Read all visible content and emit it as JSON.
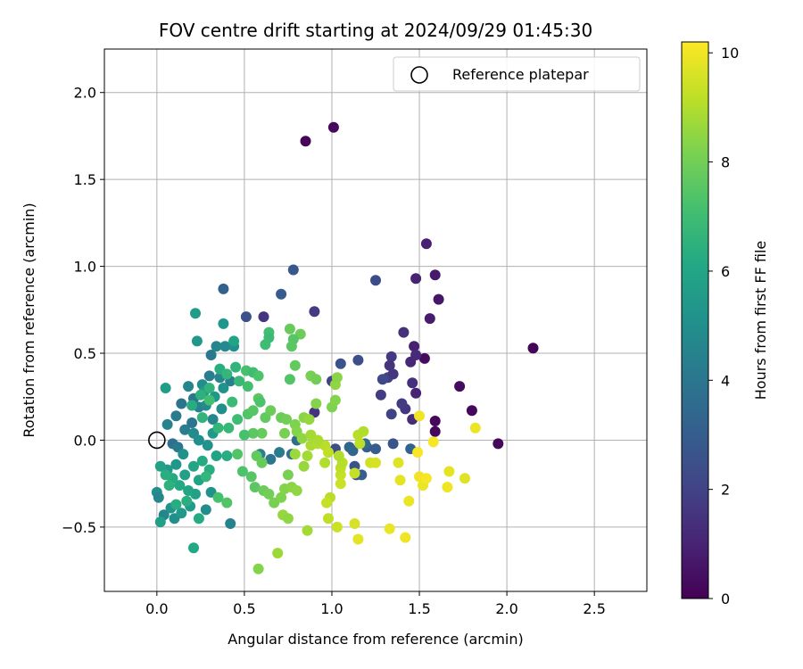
{
  "chart_data": {
    "type": "scatter",
    "title": "FOV centre drift starting at 2024/09/29 01:45:30",
    "xlabel": "Angular distance from reference (arcmin)",
    "ylabel": "Rotation from reference (arcmin)",
    "xlim": [
      -0.3,
      2.8
    ],
    "ylim": [
      -0.87,
      2.25
    ],
    "xticks": [
      0.0,
      0.5,
      1.0,
      1.5,
      2.0,
      2.5
    ],
    "xtick_labels": [
      "0.0",
      "0.5",
      "1.0",
      "1.5",
      "2.0",
      "2.5"
    ],
    "yticks": [
      -0.5,
      0.0,
      0.5,
      1.0,
      1.5,
      2.0
    ],
    "ytick_labels": [
      "−0.5",
      "0.0",
      "0.5",
      "1.0",
      "1.5",
      "2.0"
    ],
    "grid": true,
    "legend": {
      "placement": "top-right",
      "entries": [
        "Reference platepar"
      ]
    },
    "reference_point": {
      "x": 0.0,
      "y": 0.0,
      "label": "Reference platepar"
    },
    "colorbar": {
      "label": "Hours from first FF file",
      "colormap": "viridis",
      "range": [
        0,
        10.2
      ],
      "ticks": [
        0,
        2,
        4,
        6,
        8,
        10
      ],
      "tick_labels": [
        "0",
        "2",
        "4",
        "6",
        "8",
        "10"
      ]
    },
    "points": [
      [
        0.85,
        1.72,
        0.1
      ],
      [
        1.01,
        1.8,
        0.2
      ],
      [
        2.15,
        0.53,
        0.1
      ],
      [
        1.95,
        -0.02,
        0.2
      ],
      [
        1.8,
        0.17,
        0.2
      ],
      [
        1.73,
        0.31,
        0.3
      ],
      [
        1.59,
        0.11,
        0.2
      ],
      [
        1.59,
        0.05,
        0.2
      ],
      [
        1.53,
        0.47,
        0.3
      ],
      [
        1.61,
        0.81,
        0.6
      ],
      [
        1.59,
        0.95,
        0.7
      ],
      [
        1.54,
        1.13,
        0.9
      ],
      [
        1.56,
        0.7,
        0.8
      ],
      [
        1.48,
        0.93,
        1.0
      ],
      [
        1.47,
        0.54,
        0.9
      ],
      [
        1.45,
        0.45,
        1.1
      ],
      [
        1.48,
        0.49,
        1.2
      ],
      [
        1.46,
        0.33,
        1.4
      ],
      [
        1.48,
        0.27,
        1.0
      ],
      [
        1.46,
        0.12,
        1.3
      ],
      [
        1.42,
        0.18,
        1.6
      ],
      [
        1.4,
        0.21,
        1.8
      ],
      [
        1.41,
        0.62,
        1.4
      ],
      [
        1.34,
        0.48,
        1.7
      ],
      [
        1.33,
        0.43,
        1.5
      ],
      [
        1.32,
        0.36,
        1.9
      ],
      [
        1.35,
        0.38,
        1.6
      ],
      [
        1.29,
        0.35,
        2.2
      ],
      [
        1.28,
        0.26,
        1.8
      ],
      [
        1.34,
        0.15,
        2.0
      ],
      [
        1.35,
        -0.02,
        2.6
      ],
      [
        1.25,
        0.92,
        2.3
      ],
      [
        1.15,
        0.46,
        2.4
      ],
      [
        1.05,
        0.44,
        2.6
      ],
      [
        0.9,
        0.74,
        1.8
      ],
      [
        0.78,
        0.98,
        2.8
      ],
      [
        0.71,
        0.84,
        2.9
      ],
      [
        0.61,
        0.71,
        1.6
      ],
      [
        0.51,
        0.71,
        2.5
      ],
      [
        0.38,
        0.87,
        3.2
      ],
      [
        0.9,
        0.16,
        1.5
      ],
      [
        1.0,
        0.34,
        2.0
      ],
      [
        1.02,
        -0.05,
        2.4
      ],
      [
        1.13,
        -0.15,
        2.6
      ],
      [
        1.14,
        -0.2,
        2.4
      ],
      [
        1.17,
        -0.2,
        3.1
      ],
      [
        1.1,
        -0.04,
        3.3
      ],
      [
        1.25,
        -0.05,
        2.9
      ],
      [
        1.2,
        -0.04,
        3.0
      ],
      [
        1.12,
        -0.06,
        3.4
      ],
      [
        1.19,
        -0.02,
        3.5
      ],
      [
        1.45,
        -0.05,
        3.2
      ],
      [
        0.8,
        0.0,
        3.6
      ],
      [
        0.77,
        -0.08,
        3.8
      ],
      [
        0.7,
        -0.07,
        4.2
      ],
      [
        0.65,
        -0.11,
        4.0
      ],
      [
        0.59,
        -0.08,
        4.4
      ],
      [
        0.42,
        -0.48,
        4.5
      ],
      [
        0.31,
        0.49,
        4.1
      ],
      [
        0.34,
        0.54,
        4.6
      ],
      [
        0.39,
        0.54,
        4.8
      ],
      [
        0.44,
        0.54,
        5.0
      ],
      [
        0.38,
        0.67,
        5.3
      ],
      [
        0.22,
        0.73,
        5.6
      ],
      [
        0.23,
        0.57,
        5.4
      ],
      [
        0.3,
        0.37,
        4.3
      ],
      [
        0.36,
        0.36,
        4.7
      ],
      [
        0.42,
        0.34,
        4.4
      ],
      [
        0.38,
        0.3,
        5.2
      ],
      [
        0.26,
        0.32,
        4.9
      ],
      [
        0.21,
        0.24,
        4.1
      ],
      [
        0.18,
        0.31,
        4.6
      ],
      [
        0.14,
        0.21,
        3.9
      ],
      [
        0.11,
        0.14,
        4.2
      ],
      [
        0.06,
        0.09,
        4.5
      ],
      [
        0.05,
        0.3,
        5.6
      ],
      [
        0.09,
        -0.02,
        3.8
      ],
      [
        0.12,
        -0.04,
        4.1
      ],
      [
        0.16,
        0.06,
        4.3
      ],
      [
        0.2,
        0.1,
        4.0
      ],
      [
        0.24,
        0.19,
        4.5
      ],
      [
        0.28,
        0.2,
        4.8
      ],
      [
        0.32,
        0.12,
        4.7
      ],
      [
        0.37,
        0.18,
        5.0
      ],
      [
        0.33,
        0.25,
        5.3
      ],
      [
        0.27,
        0.28,
        5.5
      ],
      [
        0.21,
        0.04,
        4.8
      ],
      [
        0.24,
        0.0,
        5.0
      ],
      [
        0.29,
        -0.03,
        5.2
      ],
      [
        0.32,
        0.04,
        5.4
      ],
      [
        0.15,
        -0.08,
        5.1
      ],
      [
        0.11,
        -0.14,
        5.3
      ],
      [
        0.06,
        -0.17,
        5.5
      ],
      [
        0.02,
        -0.15,
        5.8
      ],
      [
        0.0,
        -0.3,
        5.0
      ],
      [
        0.01,
        -0.33,
        4.7
      ],
      [
        0.04,
        -0.43,
        4.6
      ],
      [
        0.02,
        -0.47,
        5.7
      ],
      [
        0.08,
        -0.39,
        5.2
      ],
      [
        0.1,
        -0.45,
        5.0
      ],
      [
        0.14,
        -0.42,
        5.4
      ],
      [
        0.19,
        -0.38,
        5.6
      ],
      [
        0.22,
        -0.31,
        5.8
      ],
      [
        0.28,
        -0.4,
        4.9
      ],
      [
        0.31,
        -0.3,
        5.1
      ],
      [
        0.24,
        -0.23,
        5.9
      ],
      [
        0.18,
        -0.29,
        6.0
      ],
      [
        0.13,
        -0.26,
        6.1
      ],
      [
        0.09,
        -0.22,
        6.2
      ],
      [
        0.05,
        -0.2,
        6.4
      ],
      [
        0.16,
        -0.2,
        5.7
      ],
      [
        0.21,
        -0.15,
        6.0
      ],
      [
        0.26,
        -0.12,
        6.2
      ],
      [
        0.3,
        -0.17,
        6.3
      ],
      [
        0.34,
        -0.09,
        5.9
      ],
      [
        0.4,
        -0.09,
        6.3
      ],
      [
        0.21,
        -0.62,
        6.1
      ],
      [
        0.11,
        -0.37,
        6.3
      ],
      [
        0.07,
        -0.26,
        6.5
      ],
      [
        0.17,
        -0.35,
        6.4
      ],
      [
        0.24,
        -0.45,
        6.2
      ],
      [
        0.2,
        0.2,
        6.3
      ],
      [
        0.25,
        0.26,
        6.5
      ],
      [
        0.3,
        0.3,
        6.6
      ],
      [
        0.36,
        0.41,
        6.4
      ],
      [
        0.4,
        0.38,
        6.7
      ],
      [
        0.45,
        0.42,
        6.6
      ],
      [
        0.47,
        0.34,
        6.8
      ],
      [
        0.43,
        0.22,
        6.9
      ],
      [
        0.46,
        0.12,
        7.0
      ],
      [
        0.41,
        0.07,
        6.8
      ],
      [
        0.35,
        0.07,
        6.7
      ],
      [
        0.3,
        0.23,
        7.1
      ],
      [
        0.26,
        0.13,
        6.6
      ],
      [
        0.51,
        0.4,
        7.2
      ],
      [
        0.55,
        0.39,
        7.0
      ],
      [
        0.58,
        0.37,
        7.3
      ],
      [
        0.52,
        0.31,
        7.1
      ],
      [
        0.52,
        0.15,
        7.4
      ],
      [
        0.55,
        0.17,
        7.5
      ],
      [
        0.58,
        0.24,
        7.6
      ],
      [
        0.59,
        0.22,
        7.3
      ],
      [
        0.62,
        0.13,
        7.7
      ],
      [
        0.65,
        0.17,
        7.9
      ],
      [
        0.6,
        0.04,
        7.8
      ],
      [
        0.55,
        0.04,
        7.6
      ],
      [
        0.5,
        0.03,
        7.2
      ],
      [
        0.46,
        -0.08,
        7.4
      ],
      [
        0.49,
        -0.18,
        7.3
      ],
      [
        0.57,
        -0.09,
        7.7
      ],
      [
        0.6,
        -0.13,
        7.8
      ],
      [
        0.54,
        -0.21,
        7.5
      ],
      [
        0.56,
        -0.27,
        7.6
      ],
      [
        0.61,
        -0.29,
        7.9
      ],
      [
        0.64,
        -0.31,
        8.0
      ],
      [
        0.67,
        -0.36,
        8.1
      ],
      [
        0.71,
        -0.33,
        8.2
      ],
      [
        0.73,
        -0.28,
        8.3
      ],
      [
        0.75,
        -0.2,
        8.1
      ],
      [
        0.77,
        -0.27,
        8.4
      ],
      [
        0.8,
        -0.29,
        8.5
      ],
      [
        0.72,
        -0.43,
        8.6
      ],
      [
        0.75,
        -0.45,
        8.5
      ],
      [
        0.58,
        -0.74,
        8.3
      ],
      [
        0.69,
        -0.65,
        8.7
      ],
      [
        0.86,
        -0.52,
        8.8
      ],
      [
        0.71,
        0.13,
        7.9
      ],
      [
        0.74,
        0.12,
        8.0
      ],
      [
        0.79,
        0.09,
        8.2
      ],
      [
        0.73,
        0.04,
        8.1
      ],
      [
        0.8,
        0.05,
        8.3
      ],
      [
        0.84,
        0.13,
        8.4
      ],
      [
        0.87,
        0.12,
        8.6
      ],
      [
        0.83,
        0.01,
        8.5
      ],
      [
        0.79,
        -0.08,
        8.7
      ],
      [
        0.86,
        -0.09,
        8.8
      ],
      [
        0.88,
        -0.03,
        8.9
      ],
      [
        0.92,
        -0.02,
        9.0
      ],
      [
        0.96,
        -0.03,
        9.1
      ],
      [
        0.98,
        -0.07,
        9.2
      ],
      [
        0.96,
        -0.13,
        9.0
      ],
      [
        0.99,
        -0.33,
        9.1
      ],
      [
        0.97,
        -0.36,
        9.3
      ],
      [
        0.98,
        -0.45,
        9.2
      ],
      [
        1.03,
        -0.5,
        9.4
      ],
      [
        1.05,
        -0.2,
        9.3
      ],
      [
        1.05,
        -0.16,
        9.2
      ],
      [
        1.06,
        -0.13,
        9.1
      ],
      [
        1.04,
        -0.09,
        9.0
      ],
      [
        1.05,
        -0.25,
        9.4
      ],
      [
        1.13,
        -0.19,
        9.3
      ],
      [
        1.13,
        -0.48,
        9.6
      ],
      [
        1.15,
        -0.57,
        9.8
      ],
      [
        1.16,
        -0.02,
        9.2
      ],
      [
        1.15,
        0.03,
        9.1
      ],
      [
        1.18,
        0.05,
        9.0
      ],
      [
        1.22,
        -0.13,
        9.5
      ],
      [
        1.25,
        -0.13,
        9.6
      ],
      [
        1.33,
        -0.51,
        9.9
      ],
      [
        1.42,
        -0.56,
        10.0
      ],
      [
        1.38,
        -0.13,
        9.7
      ],
      [
        1.39,
        -0.23,
        9.8
      ],
      [
        1.44,
        -0.35,
        9.9
      ],
      [
        1.49,
        -0.07,
        10.1
      ],
      [
        1.5,
        -0.21,
        10.0
      ],
      [
        1.52,
        -0.26,
        9.9
      ],
      [
        1.54,
        -0.22,
        10.1
      ],
      [
        1.5,
        0.14,
        10.0
      ],
      [
        1.58,
        -0.01,
        10.1
      ],
      [
        1.67,
        -0.18,
        9.8
      ],
      [
        1.66,
        -0.27,
        10.0
      ],
      [
        1.76,
        -0.22,
        9.7
      ],
      [
        1.82,
        0.07,
        9.9
      ],
      [
        1.0,
        0.19,
        8.2
      ],
      [
        1.02,
        0.23,
        8.3
      ],
      [
        1.02,
        0.32,
        8.5
      ],
      [
        1.03,
        0.36,
        8.4
      ],
      [
        0.91,
        0.21,
        8.3
      ],
      [
        0.88,
        0.37,
        8.1
      ],
      [
        0.91,
        0.35,
        8.0
      ],
      [
        0.79,
        0.43,
        7.7
      ],
      [
        0.82,
        0.61,
        7.9
      ],
      [
        0.76,
        0.64,
        7.8
      ],
      [
        0.78,
        0.58,
        7.5
      ],
      [
        0.77,
        0.54,
        7.6
      ],
      [
        0.64,
        0.62,
        7.1
      ],
      [
        0.64,
        0.59,
        6.9
      ],
      [
        0.62,
        0.55,
        7.0
      ],
      [
        0.76,
        0.35,
        7.4
      ],
      [
        0.88,
        0.03,
        8.8
      ],
      [
        0.92,
        0.0,
        8.9
      ],
      [
        0.84,
        -0.15,
        8.6
      ],
      [
        0.35,
        -0.33,
        7.2
      ],
      [
        0.4,
        -0.36,
        7.4
      ],
      [
        0.28,
        -0.21,
        6.7
      ],
      [
        0.44,
        0.57,
        5.9
      ]
    ]
  }
}
